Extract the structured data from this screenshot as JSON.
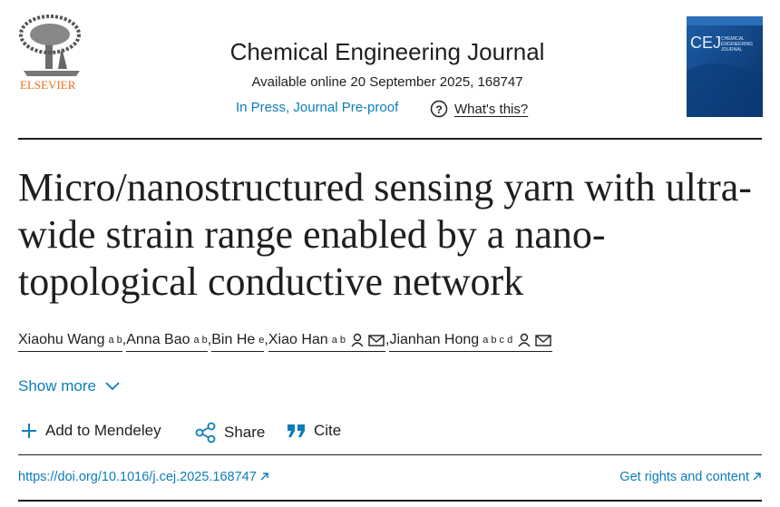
{
  "header": {
    "publisher": "ELSEVIER",
    "journal": "Chemical Engineering Journal",
    "availability": "Available online 20 September 2025, 168747",
    "status": "In Press, Journal Pre-proof",
    "help": "What's this?",
    "cover": {
      "logo": "CEJ",
      "subtitle": "CHEMICAL ENGINEERING JOURNAL"
    }
  },
  "article": {
    "title": "Micro/nanostructured sensing yarn with ultra-wide strain range enabled by a nano-topological conductive network",
    "separator": ",",
    "authors": [
      {
        "name": "Xiaohu Wang",
        "affiliations": "a b"
      },
      {
        "name": "Anna Bao",
        "affiliations": "a b"
      },
      {
        "name": "Bin He",
        "affiliations": "e"
      },
      {
        "name": "Xiao Han",
        "affiliations": "a b"
      },
      {
        "name": "Jianhan Hong",
        "affiliations": "a b c d"
      }
    ],
    "show_more": "Show more"
  },
  "actions": {
    "mendeley": "Add to Mendeley",
    "share": "Share",
    "cite": "Cite"
  },
  "links": {
    "doi": "https://doi.org/10.1016/j.cej.2025.168747",
    "rights": "Get rights and content"
  }
}
